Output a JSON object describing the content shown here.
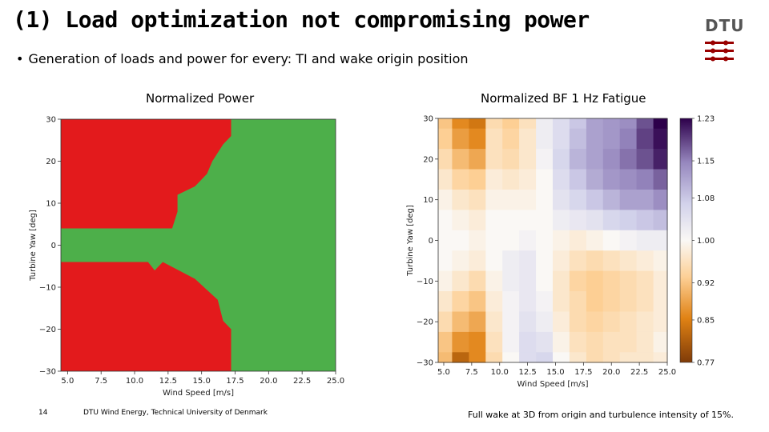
{
  "slide": {
    "title": "(1) Load optimization not compromising power",
    "bullet": "Generation of loads and power for every:  TI and wake origin position",
    "logo_text": "DTU",
    "page_number": "14",
    "footer": "DTU Wind Energy, Technical University of Denmark",
    "caption": "Full wake at 3D from origin and turbulence intensity of 15%.",
    "colors": {
      "red": "#e31a1c",
      "green": "#4daf4a",
      "logo_red": "#990000"
    }
  },
  "chart_data": [
    {
      "type": "heatmap",
      "title": "Normalized Power",
      "xlabel": "Wind Speed [m/s]",
      "ylabel": "Turbine Yaw [deg]",
      "xlim": [
        4.5,
        25.0
      ],
      "ylim": [
        -30,
        30
      ],
      "xticks": [
        5.0,
        7.5,
        10.0,
        12.5,
        15.0,
        17.5,
        20.0,
        22.5,
        25.0
      ],
      "xtick_labels": [
        "5.0",
        "7.5",
        "10.0",
        "12.5",
        "15.0",
        "17.5",
        "20.0",
        "22.5",
        "25.0"
      ],
      "yticks": [
        30,
        20,
        10,
        0,
        -10,
        -20,
        -30
      ],
      "ytick_labels": [
        "30",
        "20",
        "10",
        "0",
        "−10",
        "−20",
        "−30"
      ],
      "regions": [
        {
          "name": "red-region",
          "color": "#e31a1c",
          "points": [
            [
              4.5,
              30
            ],
            [
              17.2,
              30
            ],
            [
              17.2,
              26
            ],
            [
              16.6,
              24
            ],
            [
              15.8,
              20
            ],
            [
              15.4,
              17
            ],
            [
              14.5,
              14
            ],
            [
              13.2,
              12
            ],
            [
              13.2,
              8
            ],
            [
              12.8,
              4
            ],
            [
              4.5,
              4
            ]
          ]
        },
        {
          "name": "red-region",
          "color": "#e31a1c",
          "points": [
            [
              4.5,
              -4
            ],
            [
              11.0,
              -4
            ],
            [
              11.5,
              -6
            ],
            [
              12.1,
              -4
            ],
            [
              14.5,
              -8
            ],
            [
              16.2,
              -13
            ],
            [
              16.6,
              -18
            ],
            [
              17.2,
              -20
            ],
            [
              17.2,
              -30
            ],
            [
              4.5,
              -30
            ]
          ]
        }
      ],
      "background_color": "#4daf4a"
    },
    {
      "type": "heatmap",
      "title": "Normalized BF 1 Hz Fatigue",
      "xlabel": "Wind Speed [m/s]",
      "ylabel": "Turbine Yaw [deg]",
      "xlim": [
        4.5,
        25.0
      ],
      "ylim": [
        -30,
        30
      ],
      "xticks": [
        5.0,
        7.5,
        10.0,
        12.5,
        15.0,
        17.5,
        20.0,
        22.5,
        25.0
      ],
      "xtick_labels": [
        "5.0",
        "7.5",
        "10.0",
        "12.5",
        "15.0",
        "17.5",
        "20.0",
        "22.5",
        "25.0"
      ],
      "yticks": [
        30,
        20,
        10,
        0,
        -10,
        -20,
        -30
      ],
      "ytick_labels": [
        "30",
        "20",
        "10",
        "0",
        "−10",
        "−20",
        "−30"
      ],
      "colorbar": {
        "ticks": [
          1.23,
          1.15,
          1.08,
          1.0,
          0.92,
          0.85,
          0.77
        ],
        "tick_labels": [
          "1.23",
          "1.15",
          "1.08",
          "1.00",
          "0.92",
          "0.85",
          "0.77"
        ],
        "range": [
          0.77,
          1.23
        ],
        "cmap": "PuOr"
      },
      "x_samples": [
        5.0,
        6.5,
        8.0,
        9.5,
        11.0,
        12.5,
        14.0,
        15.5,
        17.0,
        18.5,
        20.0,
        21.5,
        23.0,
        24.5
      ],
      "y_samples": [
        30,
        25,
        20,
        15,
        10,
        5,
        0,
        -5,
        -10,
        -15,
        -20,
        -25,
        -30
      ],
      "values": [
        [
          0.92,
          0.86,
          0.84,
          0.95,
          0.93,
          0.96,
          1.02,
          1.05,
          1.08,
          1.12,
          1.13,
          1.14,
          1.18,
          1.23
        ],
        [
          0.93,
          0.88,
          0.86,
          0.96,
          0.94,
          0.97,
          1.02,
          1.05,
          1.09,
          1.12,
          1.13,
          1.15,
          1.19,
          1.22
        ],
        [
          0.95,
          0.91,
          0.89,
          0.96,
          0.95,
          0.97,
          1.01,
          1.06,
          1.1,
          1.12,
          1.14,
          1.16,
          1.18,
          1.21
        ],
        [
          0.97,
          0.94,
          0.93,
          0.98,
          0.97,
          0.98,
          1.0,
          1.05,
          1.08,
          1.11,
          1.13,
          1.14,
          1.15,
          1.17
        ],
        [
          0.99,
          0.97,
          0.96,
          0.99,
          0.99,
          0.99,
          1.0,
          1.04,
          1.06,
          1.08,
          1.1,
          1.12,
          1.12,
          1.14
        ],
        [
          1.0,
          0.99,
          0.98,
          1.0,
          1.0,
          1.0,
          1.0,
          1.02,
          1.03,
          1.04,
          1.06,
          1.07,
          1.08,
          1.09
        ],
        [
          1.0,
          1.0,
          0.99,
          1.0,
          1.0,
          1.01,
          1.0,
          0.99,
          0.98,
          0.99,
          1.0,
          1.01,
          1.02,
          1.02
        ],
        [
          1.0,
          0.99,
          0.98,
          1.0,
          1.02,
          1.03,
          1.0,
          0.98,
          0.96,
          0.95,
          0.96,
          0.97,
          0.98,
          0.99
        ],
        [
          0.99,
          0.97,
          0.95,
          0.99,
          1.02,
          1.03,
          1.0,
          0.97,
          0.94,
          0.93,
          0.94,
          0.95,
          0.96,
          0.98
        ],
        [
          0.97,
          0.94,
          0.92,
          0.98,
          1.01,
          1.03,
          1.01,
          0.97,
          0.95,
          0.93,
          0.94,
          0.95,
          0.96,
          0.98
        ],
        [
          0.95,
          0.91,
          0.89,
          0.97,
          1.01,
          1.04,
          1.02,
          0.98,
          0.95,
          0.94,
          0.95,
          0.96,
          0.97,
          0.98
        ],
        [
          0.92,
          0.87,
          0.86,
          0.96,
          1.01,
          1.05,
          1.04,
          0.99,
          0.96,
          0.95,
          0.96,
          0.96,
          0.97,
          0.99
        ],
        [
          0.91,
          0.82,
          0.86,
          0.95,
          1.0,
          1.05,
          1.06,
          1.0,
          0.97,
          0.95,
          0.96,
          0.97,
          0.97,
          0.98
        ]
      ]
    }
  ]
}
